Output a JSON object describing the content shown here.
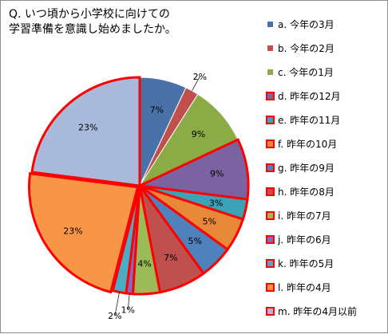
{
  "chart_data": {
    "type": "pie",
    "title": "Q. いつ頃から小学校に向けての\n学習準備を意識し始めましたか。",
    "start_angle_deg": 0,
    "direction": "clockwise",
    "categories": [
      "a. 今年の3月",
      "b. 今年の2月",
      "c. 今年の1月",
      "d. 昨年の12月",
      "e. 昨年の11月",
      "f. 昨年の10月",
      "g. 昨年の9月",
      "h. 昨年の8月",
      "i. 昨年の7月",
      "j. 昨年の6月",
      "k. 昨年の5月",
      "l. 昨年の4月",
      "m. 昨年の4月以前"
    ],
    "values": [
      7,
      2,
      9,
      9,
      3,
      5,
      5,
      7,
      4,
      1,
      2,
      23,
      23
    ],
    "labels": [
      "7%",
      "2%",
      "9%",
      "9%",
      "3%",
      "5%",
      "5%",
      "7%",
      "4%",
      "1%",
      "2%",
      "23%",
      "23%"
    ],
    "colors": [
      "#4a72a8",
      "#c0504d",
      "#8aab45",
      "#7b62a0",
      "#3ca2b8",
      "#e8893a",
      "#4f81bd",
      "#c0504d",
      "#9bbb59",
      "#7f6bbf",
      "#4bacc6",
      "#f79646",
      "#a9b9d9"
    ],
    "highlight_border": [
      false,
      false,
      false,
      true,
      true,
      true,
      true,
      true,
      true,
      true,
      true,
      true,
      true
    ],
    "highlight_color": "#ff0000",
    "legend_position": "right"
  }
}
